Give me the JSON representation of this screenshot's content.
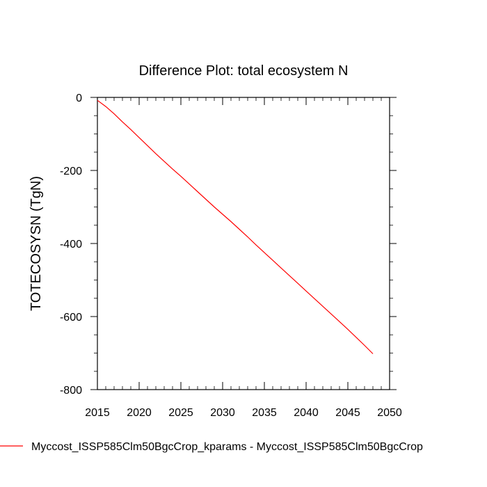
{
  "chart_data": {
    "type": "line",
    "title": "Difference Plot: total ecosystem N",
    "xlabel": "",
    "ylabel": "TOTECOSYSN  (TgN)",
    "xlim": [
      2015,
      2050
    ],
    "ylim": [
      -800,
      0
    ],
    "x_ticks": [
      2015,
      2020,
      2025,
      2030,
      2035,
      2040,
      2045,
      2050
    ],
    "y_ticks": [
      0,
      -200,
      -400,
      -600,
      -800
    ],
    "grid": false,
    "legend_position": "bottom",
    "series": [
      {
        "name": "Myccost_ISSP585Clm50BgcCrop_kparams - Myccost_ISSP585Clm50BgcCrop",
        "color": "#ff0000",
        "x": [
          2015,
          2016,
          2017,
          2018,
          2019,
          2020,
          2021,
          2022,
          2023,
          2024,
          2025,
          2026,
          2027,
          2028,
          2029,
          2030,
          2031,
          2032,
          2033,
          2034,
          2035,
          2036,
          2037,
          2038,
          2039,
          2040,
          2041,
          2042,
          2043,
          2044,
          2045,
          2046,
          2047,
          2048
        ],
        "y": [
          -8,
          -25,
          -45,
          -67,
          -88,
          -110,
          -132,
          -154,
          -175,
          -196,
          -216,
          -237,
          -258,
          -279,
          -300,
          -320,
          -340,
          -361,
          -382,
          -404,
          -425,
          -446,
          -467,
          -488,
          -509,
          -530,
          -551,
          -572,
          -593,
          -614,
          -635,
          -657,
          -679,
          -702
        ]
      }
    ]
  }
}
